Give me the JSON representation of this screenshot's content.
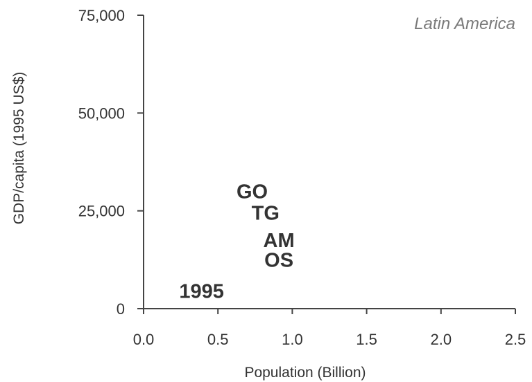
{
  "chart_data": {
    "type": "scatter",
    "title": "Latin America",
    "xlabel": "Population (Billion)",
    "ylabel": "GDP/capita (1995 US$)",
    "xlim": [
      0,
      2.5
    ],
    "ylim": [
      0,
      75000
    ],
    "x_ticks": [
      {
        "value": 0,
        "label": "0.0"
      },
      {
        "value": 0.5,
        "label": "0.5"
      },
      {
        "value": 1.0,
        "label": "1.0"
      },
      {
        "value": 1.5,
        "label": "1.5"
      },
      {
        "value": 2.0,
        "label": "2.0"
      },
      {
        "value": 2.5,
        "label": "2.5"
      }
    ],
    "y_ticks": [
      {
        "value": 0,
        "label": "0"
      },
      {
        "value": 25000,
        "label": "25,000"
      },
      {
        "value": 50000,
        "label": "50,000"
      },
      {
        "value": 75000,
        "label": "75,000"
      }
    ],
    "grid": false,
    "legend": "none",
    "points": [
      {
        "label": "1995",
        "x": 0.39,
        "y": 4500
      },
      {
        "label": "GO",
        "x": 0.73,
        "y": 30000
      },
      {
        "label": "TG",
        "x": 0.82,
        "y": 24500
      },
      {
        "label": "AM",
        "x": 0.91,
        "y": 17500
      },
      {
        "label": "OS",
        "x": 0.91,
        "y": 12500
      }
    ]
  }
}
